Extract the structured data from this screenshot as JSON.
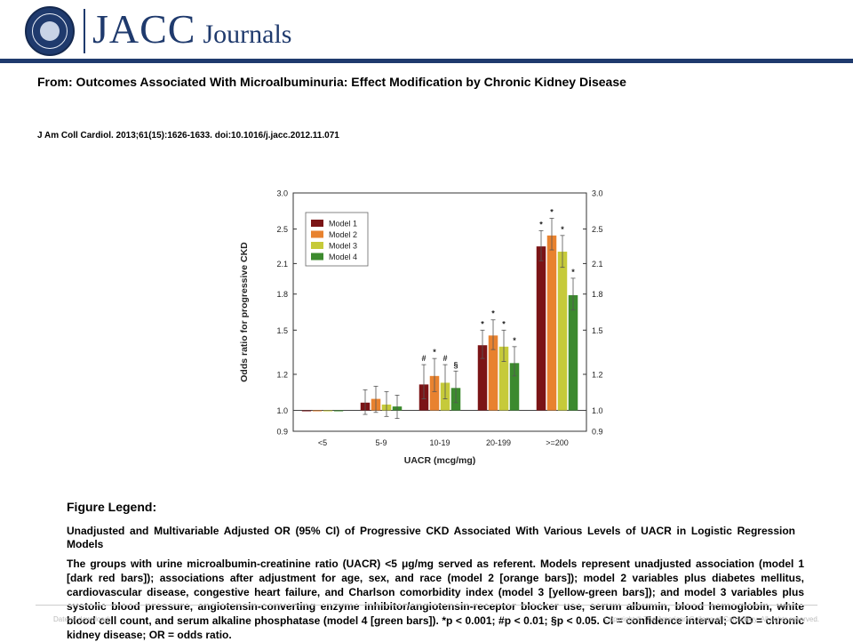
{
  "header": {
    "brand_main": "JACC",
    "brand_sub": "Journals"
  },
  "article": {
    "from": "From: Outcomes Associated With Microalbuminuria: Effect Modification by Chronic Kidney Disease",
    "citation": "J Am Coll Cardiol. 2013;61(15):1626-1633. doi:10.1016/j.jacc.2012.11.071"
  },
  "legend": {
    "title": "Figure Legend:",
    "heading": "Unadjusted and Multivariable Adjusted OR (95% CI) of Progressive CKD Associated With Various Levels of UACR in Logistic Regression Models",
    "body": "The groups with urine microalbumin-creatinine ratio (UACR) <5 μg/mg served as referent. Models represent unadjusted association (model 1 [dark red bars]); associations after adjustment for age, sex, and race (model 2 [orange bars]); model 2 variables plus diabetes mellitus, cardiovascular disease, congestive heart failure, and Charlson comorbidity index (model 3 [yellow-green bars]); and model 3 variables plus systolic blood pressure, angiotensin-converting enzyme inhibitor/angiotensin-receptor blocker use, serum albumin, blood hemoglobin, white blood cell count, and serum alkaline phosphatase (model 4 [green bars]). *p < 0.001; #p < 0.01; §p < 0.05. CI = confidence interval; CKD = chronic kidney disease; OR = odds ratio."
  },
  "footer": {
    "left": "Date of download:",
    "right": "Copyright © The American College of Cardiology. All rights reserved."
  },
  "chart_data": {
    "type": "bar",
    "xlabel": "UACR (mcg/mg)",
    "ylabel": "Odds ratio for progressive CKD",
    "y_scale": "log",
    "ylim": [
      0.9,
      3.0
    ],
    "yticks": [
      0.9,
      1.0,
      1.2,
      1.5,
      1.8,
      2.1,
      2.5,
      3.0
    ],
    "ytick_labels": [
      "0.9",
      "1.0",
      "1.2",
      "1.5",
      "1.8",
      "2.1",
      "2.5",
      "3.0"
    ],
    "reference_line": 1.0,
    "legend_position": "top-left",
    "categories": [
      "<5",
      "5-9",
      "10-19",
      "20-199",
      ">=200"
    ],
    "series": [
      {
        "name": "Model 1",
        "color": "#7b1416",
        "values": [
          1.0,
          1.04,
          1.14,
          1.39,
          2.29
        ],
        "ci_low": [
          1.0,
          0.98,
          1.06,
          1.3,
          2.13
        ],
        "ci_high": [
          1.0,
          1.11,
          1.26,
          1.5,
          2.48
        ],
        "annotations": [
          "",
          "",
          "#",
          "*",
          "*"
        ]
      },
      {
        "name": "Model 2",
        "color": "#e8822f",
        "values": [
          1.0,
          1.06,
          1.19,
          1.46,
          2.42
        ],
        "ci_low": [
          1.0,
          0.99,
          1.1,
          1.36,
          2.25
        ],
        "ci_high": [
          1.0,
          1.13,
          1.3,
          1.58,
          2.64
        ],
        "annotations": [
          "",
          "",
          "*",
          "*",
          "*"
        ]
      },
      {
        "name": "Model 3",
        "color": "#c6ca3a",
        "values": [
          1.0,
          1.03,
          1.15,
          1.38,
          2.23
        ],
        "ci_low": [
          1.0,
          0.97,
          1.06,
          1.28,
          2.06
        ],
        "ci_high": [
          1.0,
          1.1,
          1.26,
          1.5,
          2.42
        ],
        "annotations": [
          "",
          "",
          "#",
          "*",
          "*"
        ]
      },
      {
        "name": "Model 4",
        "color": "#3c8a2e",
        "values": [
          1.0,
          1.02,
          1.12,
          1.27,
          1.79
        ],
        "ci_low": [
          1.0,
          0.96,
          1.04,
          1.19,
          1.66
        ],
        "ci_high": [
          1.0,
          1.08,
          1.22,
          1.38,
          1.95
        ],
        "annotations": [
          "",
          "",
          "§",
          "*",
          "*"
        ]
      }
    ]
  }
}
